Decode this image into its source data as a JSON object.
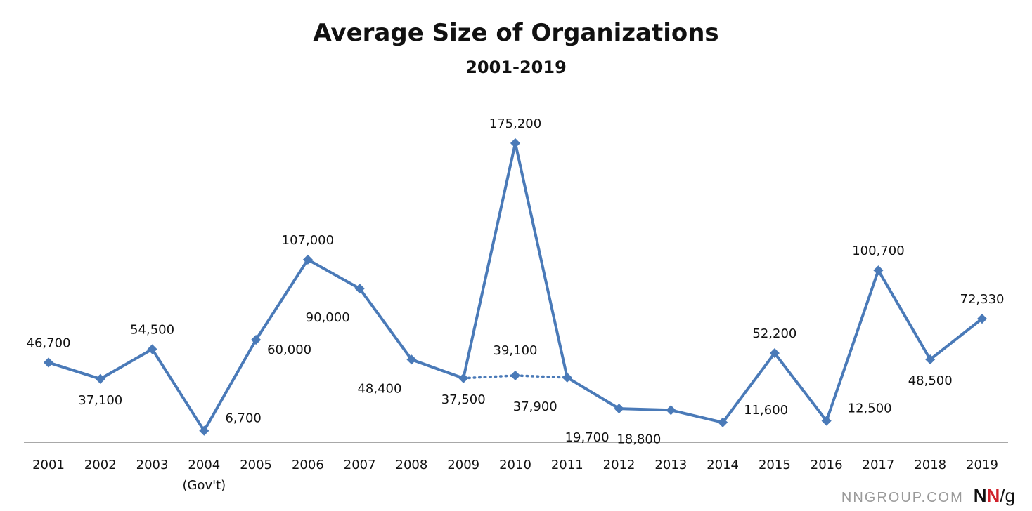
{
  "chart_data": {
    "type": "line",
    "title": "Average Size of Organizations",
    "subtitle": "2001-2019",
    "categories": [
      "2001",
      "2002",
      "2003",
      "2004",
      "2005",
      "2006",
      "2007",
      "2008",
      "2009",
      "2010",
      "2011",
      "2012",
      "2013",
      "2014",
      "2015",
      "2016",
      "2017",
      "2018",
      "2019"
    ],
    "category_sublabels": {
      "2004": "(Gov't)"
    },
    "series": [
      {
        "values": [
          46700,
          37100,
          54500,
          6700,
          60000,
          107000,
          90000,
          48400,
          37500,
          175200,
          37900,
          19700,
          18800,
          11600,
          52200,
          12500,
          100700,
          48500,
          72330
        ],
        "labels": [
          "46,700",
          "37,100",
          "54,500",
          "6,700",
          "60,000",
          "107,000",
          "90,000",
          "48,400",
          "37,500",
          "175,200",
          "37,900",
          "19,700",
          "18,800",
          "11,600",
          "52,200",
          "12,500",
          "100,700",
          "48,500",
          "72,330"
        ]
      }
    ],
    "alternate_point": {
      "category": "2010",
      "value": 39100,
      "label": "39,100",
      "style": "dotted",
      "connects": [
        "2009",
        "2011"
      ]
    },
    "ylim": [
      0,
      190000
    ],
    "xlabel": "",
    "ylabel": "",
    "grid": false,
    "legend": "none",
    "line_color": "#4a7ab8",
    "axis_color": "#8c8c8c"
  },
  "footer": {
    "site": "NNGROUP.COM",
    "logo_n1": "N",
    "logo_n2": "N",
    "logo_g": "/g"
  }
}
